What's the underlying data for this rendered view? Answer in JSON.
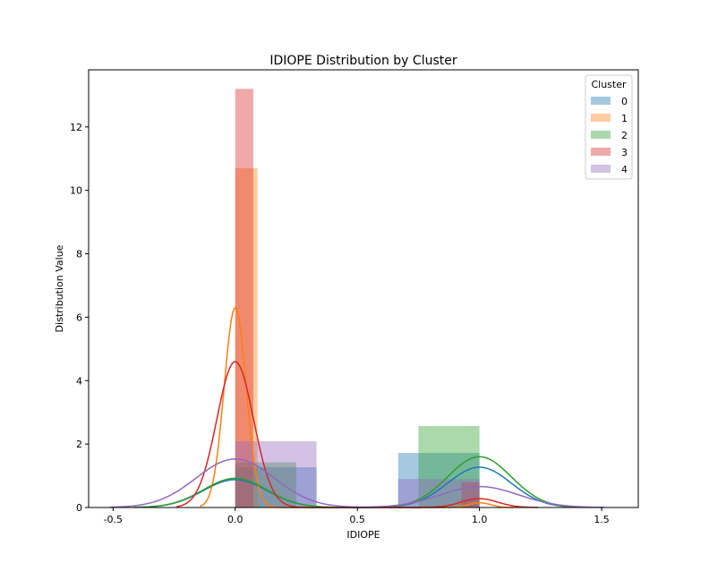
{
  "chart_data": {
    "type": "bar",
    "title": "IDIOPE Distribution by Cluster",
    "xlabel": "IDIOPE",
    "ylabel": "Distribution Value",
    "xlim": [
      -0.6,
      1.65
    ],
    "ylim": [
      0,
      13.8
    ],
    "x_ticks": [
      "-0.5",
      "0.0",
      "0.5",
      "1.0",
      "1.5"
    ],
    "x_tick_values": [
      -0.5,
      0.0,
      0.5,
      1.0,
      1.5
    ],
    "y_ticks": [
      "0",
      "2",
      "4",
      "6",
      "8",
      "10",
      "12"
    ],
    "y_tick_values": [
      0,
      2,
      4,
      6,
      8,
      10,
      12
    ],
    "grid": false,
    "legend": {
      "title": "Cluster",
      "placement": "top-right"
    },
    "series": [
      {
        "name": "0",
        "color": "#1f77b4",
        "bars": [
          {
            "x0": 0.0,
            "x1": 0.333,
            "height": 1.27
          },
          {
            "x0": 0.667,
            "x1": 1.0,
            "height": 1.72
          }
        ],
        "kde": {
          "peaks": [
            {
              "mu": 0.0,
              "sigma": 0.13,
              "height": 0.88
            },
            {
              "mu": 1.0,
              "sigma": 0.13,
              "height": 1.27
            }
          ]
        }
      },
      {
        "name": "1",
        "color": "#ff7f0e",
        "bars": [
          {
            "x0": 0.0,
            "x1": 0.091,
            "height": 10.7
          },
          {
            "x0": 0.909,
            "x1": 1.0,
            "height": 0.25
          }
        ],
        "kde": {
          "peaks": [
            {
              "mu": 0.0,
              "sigma": 0.045,
              "height": 6.3
            },
            {
              "mu": 1.0,
              "sigma": 0.045,
              "height": 0.15
            }
          ]
        }
      },
      {
        "name": "2",
        "color": "#2ca02c",
        "bars": [
          {
            "x0": 0.0,
            "x1": 0.25,
            "height": 1.42
          },
          {
            "x0": 0.75,
            "x1": 1.0,
            "height": 2.57
          }
        ],
        "kde": {
          "peaks": [
            {
              "mu": 0.0,
              "sigma": 0.13,
              "height": 0.92
            },
            {
              "mu": 1.0,
              "sigma": 0.13,
              "height": 1.6
            }
          ]
        }
      },
      {
        "name": "3",
        "color": "#d62728",
        "bars": [
          {
            "x0": 0.0,
            "x1": 0.074,
            "height": 13.2
          },
          {
            "x0": 0.926,
            "x1": 1.0,
            "height": 0.8
          }
        ],
        "kde": {
          "peaks": [
            {
              "mu": 0.0,
              "sigma": 0.075,
              "height": 4.6
            },
            {
              "mu": 1.0,
              "sigma": 0.075,
              "height": 0.28
            }
          ]
        }
      },
      {
        "name": "4",
        "color": "#9467bd",
        "bars": [
          {
            "x0": 0.0,
            "x1": 0.333,
            "height": 2.09
          },
          {
            "x0": 0.667,
            "x1": 1.0,
            "height": 0.9
          }
        ],
        "kde": {
          "peaks": [
            {
              "mu": 0.0,
              "sigma": 0.16,
              "height": 1.53
            },
            {
              "mu": 1.0,
              "sigma": 0.16,
              "height": 0.66
            }
          ]
        }
      }
    ]
  }
}
